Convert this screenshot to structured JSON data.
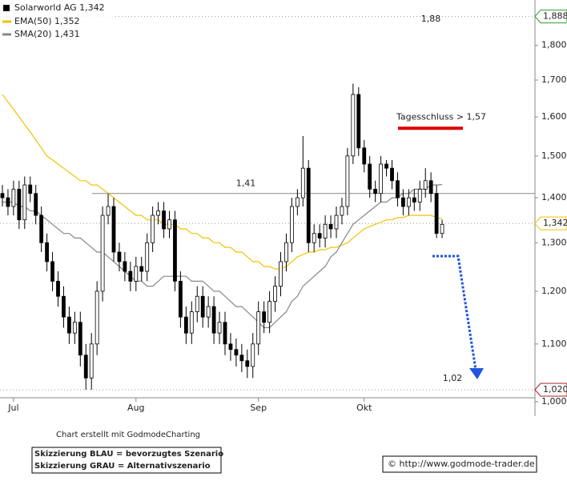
{
  "chart_data": {
    "type": "candlestick",
    "log_scale": true,
    "grid": false,
    "ylim": [
      1.0,
      1.94
    ],
    "yticks": [
      {
        "value": 1.0,
        "label": "1,000"
      },
      {
        "value": 1.1,
        "label": "1,100"
      },
      {
        "value": 1.2,
        "label": "1,200"
      },
      {
        "value": 1.3,
        "label": "1,300"
      },
      {
        "value": 1.4,
        "label": "1,400"
      },
      {
        "value": 1.5,
        "label": "1,500"
      },
      {
        "value": 1.6,
        "label": "1,600"
      },
      {
        "value": 1.7,
        "label": "1,700"
      },
      {
        "value": 1.8,
        "label": "1,800"
      }
    ],
    "categories": [
      null,
      null,
      "Jul",
      null,
      null,
      null,
      null,
      null,
      null,
      null,
      null,
      null,
      null,
      null,
      null,
      null,
      null,
      null,
      null,
      null,
      null,
      null,
      null,
      null,
      "Aug",
      null,
      null,
      null,
      null,
      null,
      null,
      null,
      null,
      null,
      null,
      null,
      null,
      null,
      null,
      null,
      null,
      null,
      null,
      null,
      null,
      null,
      "Sep",
      null,
      null,
      null,
      null,
      null,
      null,
      null,
      null,
      null,
      null,
      null,
      null,
      null,
      null,
      null,
      null,
      null,
      null,
      "Okt",
      null,
      null,
      null,
      null,
      null,
      null,
      null,
      null,
      null,
      null,
      null,
      null,
      null,
      null
    ],
    "candles": {
      "name": "Solarworld AG 1,342",
      "up_color": "#ffffff",
      "down_color": "#000000",
      "open": [
        1.41,
        1.4,
        1.38,
        1.42,
        1.35,
        1.43,
        1.41,
        1.36,
        1.3,
        1.26,
        1.22,
        1.19,
        1.15,
        1.12,
        1.14,
        1.08,
        1.04,
        1.1,
        1.2,
        1.36,
        1.38,
        1.28,
        1.26,
        1.24,
        1.22,
        1.25,
        1.24,
        1.3,
        1.36,
        1.37,
        1.33,
        1.35,
        1.22,
        1.15,
        1.12,
        1.16,
        1.19,
        1.15,
        1.17,
        1.12,
        1.14,
        1.1,
        1.09,
        1.08,
        1.07,
        1.06,
        1.1,
        1.16,
        1.14,
        1.18,
        1.21,
        1.26,
        1.3,
        1.38,
        1.4,
        1.47,
        1.3,
        1.32,
        1.31,
        1.34,
        1.33,
        1.36,
        1.38,
        1.5,
        1.66,
        1.52,
        1.48,
        1.42,
        1.41,
        1.48,
        1.47,
        1.44,
        1.4,
        1.38,
        1.4,
        1.39,
        1.42,
        1.44,
        1.41,
        1.32
      ],
      "high": [
        1.43,
        1.42,
        1.44,
        1.44,
        1.45,
        1.45,
        1.43,
        1.38,
        1.32,
        1.28,
        1.24,
        1.21,
        1.17,
        1.16,
        1.16,
        1.1,
        1.12,
        1.22,
        1.38,
        1.41,
        1.4,
        1.3,
        1.28,
        1.26,
        1.27,
        1.27,
        1.32,
        1.38,
        1.39,
        1.39,
        1.37,
        1.37,
        1.24,
        1.17,
        1.18,
        1.21,
        1.21,
        1.19,
        1.19,
        1.16,
        1.16,
        1.12,
        1.11,
        1.1,
        1.09,
        1.12,
        1.18,
        1.18,
        1.2,
        1.23,
        1.28,
        1.32,
        1.4,
        1.42,
        1.55,
        1.49,
        1.34,
        1.34,
        1.36,
        1.36,
        1.38,
        1.4,
        1.52,
        1.69,
        1.68,
        1.54,
        1.5,
        1.44,
        1.5,
        1.49,
        1.49,
        1.46,
        1.42,
        1.42,
        1.42,
        1.44,
        1.47,
        1.46,
        1.43,
        1.35
      ],
      "low": [
        1.38,
        1.36,
        1.36,
        1.33,
        1.33,
        1.39,
        1.34,
        1.28,
        1.24,
        1.2,
        1.17,
        1.13,
        1.1,
        1.1,
        1.06,
        1.02,
        1.02,
        1.08,
        1.18,
        1.34,
        1.26,
        1.24,
        1.22,
        1.2,
        1.2,
        1.22,
        1.22,
        1.28,
        1.34,
        1.31,
        1.31,
        1.2,
        1.13,
        1.1,
        1.1,
        1.14,
        1.13,
        1.13,
        1.1,
        1.1,
        1.08,
        1.07,
        1.06,
        1.05,
        1.04,
        1.04,
        1.08,
        1.12,
        1.12,
        1.16,
        1.19,
        1.24,
        1.28,
        1.36,
        1.38,
        1.28,
        1.28,
        1.29,
        1.29,
        1.31,
        1.31,
        1.34,
        1.36,
        1.48,
        1.5,
        1.46,
        1.4,
        1.39,
        1.39,
        1.45,
        1.42,
        1.38,
        1.36,
        1.36,
        1.37,
        1.37,
        1.4,
        1.39,
        1.31,
        1.31
      ],
      "close": [
        1.4,
        1.38,
        1.42,
        1.35,
        1.43,
        1.41,
        1.36,
        1.3,
        1.26,
        1.22,
        1.19,
        1.15,
        1.12,
        1.14,
        1.08,
        1.04,
        1.1,
        1.2,
        1.36,
        1.38,
        1.28,
        1.26,
        1.24,
        1.22,
        1.25,
        1.24,
        1.3,
        1.36,
        1.37,
        1.33,
        1.35,
        1.22,
        1.15,
        1.12,
        1.16,
        1.19,
        1.15,
        1.17,
        1.12,
        1.14,
        1.1,
        1.09,
        1.08,
        1.07,
        1.06,
        1.1,
        1.16,
        1.14,
        1.18,
        1.21,
        1.26,
        1.3,
        1.38,
        1.4,
        1.47,
        1.3,
        1.32,
        1.31,
        1.34,
        1.33,
        1.36,
        1.38,
        1.5,
        1.66,
        1.52,
        1.48,
        1.42,
        1.41,
        1.48,
        1.47,
        1.44,
        1.4,
        1.38,
        1.4,
        1.39,
        1.42,
        1.44,
        1.41,
        1.32,
        1.34
      ]
    },
    "series": [
      {
        "name": "EMA(50) 1,352",
        "color": "#f2c200",
        "values": [
          1.66,
          1.64,
          1.62,
          1.6,
          1.58,
          1.56,
          1.54,
          1.52,
          1.5,
          1.49,
          1.48,
          1.47,
          1.46,
          1.45,
          1.44,
          1.44,
          1.43,
          1.43,
          1.42,
          1.41,
          1.4,
          1.39,
          1.38,
          1.37,
          1.36,
          1.36,
          1.35,
          1.35,
          1.35,
          1.34,
          1.34,
          1.34,
          1.33,
          1.33,
          1.32,
          1.32,
          1.31,
          1.31,
          1.3,
          1.3,
          1.29,
          1.29,
          1.28,
          1.28,
          1.27,
          1.26,
          1.26,
          1.25,
          1.25,
          1.245,
          1.245,
          1.25,
          1.26,
          1.27,
          1.275,
          1.28,
          1.28,
          1.285,
          1.285,
          1.29,
          1.29,
          1.295,
          1.3,
          1.31,
          1.32,
          1.33,
          1.335,
          1.34,
          1.345,
          1.35,
          1.35,
          1.355,
          1.355,
          1.36,
          1.36,
          1.36,
          1.36,
          1.36,
          1.355,
          1.352
        ]
      },
      {
        "name": "SMA(20) 1,431",
        "color": "#888888",
        "values": [
          1.39,
          1.39,
          1.39,
          1.38,
          1.38,
          1.37,
          1.37,
          1.36,
          1.35,
          1.34,
          1.33,
          1.32,
          1.32,
          1.31,
          1.31,
          1.3,
          1.29,
          1.28,
          1.28,
          1.27,
          1.26,
          1.25,
          1.24,
          1.23,
          1.22,
          1.22,
          1.21,
          1.21,
          1.22,
          1.23,
          1.23,
          1.23,
          1.23,
          1.23,
          1.22,
          1.22,
          1.22,
          1.21,
          1.2,
          1.2,
          1.19,
          1.18,
          1.17,
          1.17,
          1.16,
          1.15,
          1.14,
          1.13,
          1.13,
          1.14,
          1.15,
          1.16,
          1.18,
          1.19,
          1.21,
          1.22,
          1.23,
          1.24,
          1.25,
          1.27,
          1.28,
          1.3,
          1.32,
          1.34,
          1.35,
          1.36,
          1.37,
          1.38,
          1.39,
          1.39,
          1.4,
          1.4,
          1.41,
          1.41,
          1.42,
          1.42,
          1.42,
          1.43,
          1.43,
          1.431
        ]
      }
    ],
    "levels": [
      {
        "value": 1.41,
        "label": "1,41",
        "color": "#888888"
      },
      {
        "value": 1.88,
        "label": "1,88",
        "color": "#222222"
      },
      {
        "value": 1.57,
        "label": "Tagesschluss > 1,57",
        "color": "#dd0000"
      },
      {
        "value": 1.02,
        "label": "1,02",
        "color": "#2255dd"
      }
    ],
    "price_tags": [
      {
        "value": 1.888,
        "label": "1,888",
        "color": "#2a9d2a"
      },
      {
        "value": 1.342,
        "label": "1,342",
        "color": "#f2c200"
      },
      {
        "value": 1.02,
        "label": "1,020",
        "color": "#aa2222"
      }
    ],
    "footer": {
      "credit": "Chart erstellt mit GodmodeCharting",
      "legend_blue": "Skizzierung BLAU = bevorzugtes Szenario",
      "legend_grey": "Skizzierung GRAU = Alternativszenario",
      "copyright": "© http://www.godmode-trader.de"
    }
  }
}
